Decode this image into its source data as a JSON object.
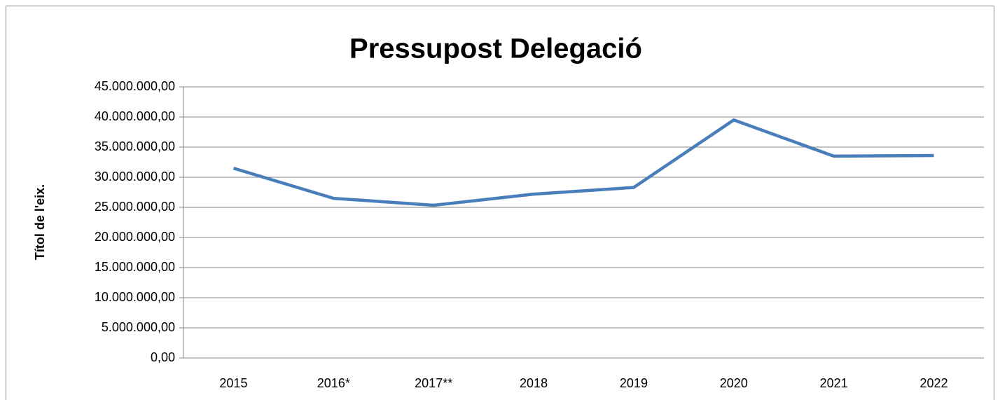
{
  "chart_data": {
    "type": "line",
    "title": "Pressupost  Delegació",
    "y_label": "Títol de l'eix.",
    "categories": [
      "2015",
      "2016*",
      "2017**",
      "2018",
      "2019",
      "2020",
      "2021",
      "2022"
    ],
    "series": [
      {
        "name": "Pressupost",
        "color": "#4a7ebb",
        "values": [
          31500000,
          26500000,
          25350000,
          27200000,
          28300000,
          39500000,
          33500000,
          33600000
        ]
      }
    ],
    "ylim": [
      0,
      45000000
    ],
    "yticks": [
      {
        "value": 0,
        "label": "0,00"
      },
      {
        "value": 5000000,
        "label": "5.000.000,00"
      },
      {
        "value": 10000000,
        "label": "10.000.000,00"
      },
      {
        "value": 15000000,
        "label": "15.000.000,00"
      },
      {
        "value": 20000000,
        "label": "20.000.000,00"
      },
      {
        "value": 25000000,
        "label": "25.000.000,00"
      },
      {
        "value": 30000000,
        "label": "30.000.000,00"
      },
      {
        "value": 35000000,
        "label": "35.000.000,00"
      },
      {
        "value": 40000000,
        "label": "40.000.000,00"
      },
      {
        "value": 45000000,
        "label": "45.000.000,00"
      }
    ],
    "grid": true
  }
}
